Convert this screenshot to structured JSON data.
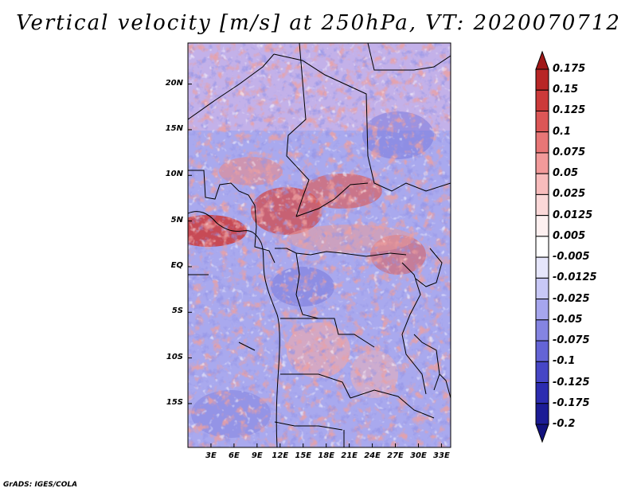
{
  "title": "Vertical velocity [m/s] at 250hPa, VT: 2020070712",
  "credit": "GrADS: IGES/COLA",
  "map": {
    "lat_ticks": [
      "20N",
      "15N",
      "10N",
      "5N",
      "EQ",
      "5S",
      "10S",
      "15S"
    ],
    "lat_values": [
      20,
      15,
      10,
      5,
      0,
      -5,
      -10,
      -15
    ],
    "lon_ticks": [
      "3E",
      "6E",
      "9E",
      "12E",
      "15E",
      "18E",
      "21E",
      "24E",
      "27E",
      "30E",
      "33E"
    ],
    "lon_values": [
      3,
      6,
      9,
      12,
      15,
      18,
      21,
      24,
      27,
      30,
      33
    ],
    "lon_range": [
      0,
      34.2
    ],
    "lat_range": [
      -19.8,
      24.5
    ]
  },
  "colorbar": {
    "labels": [
      "0.175",
      "0.15",
      "0.125",
      "0.1",
      "0.075",
      "0.05",
      "0.025",
      "0.0125",
      "0.005",
      "-0.005",
      "-0.0125",
      "-0.025",
      "-0.05",
      "-0.075",
      "-0.1",
      "-0.125",
      "-0.175",
      "-0.2"
    ],
    "colors": [
      "#a01818",
      "#b82626",
      "#cc3a3a",
      "#dc5656",
      "#e87676",
      "#f29a9a",
      "#f8bcbc",
      "#fbd8d8",
      "#fdf0f0",
      "#ffffff",
      "#e6e6fb",
      "#c8c8f6",
      "#a6a6ee",
      "#8484e2",
      "#6464d6",
      "#4646c6",
      "#2c2cb0",
      "#1c1c96",
      "#12127e"
    ]
  }
}
